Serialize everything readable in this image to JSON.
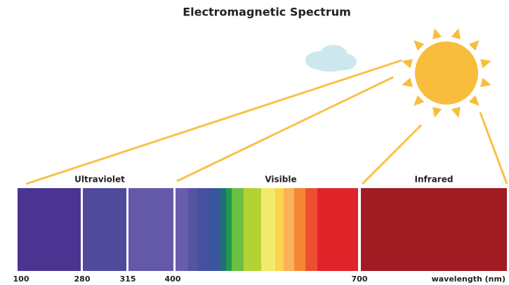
{
  "title": "Electromagnetic Spectrum",
  "regions": [
    "Ultraviolet",
    "Visible",
    "Infrared"
  ],
  "wavelength_labels": [
    "100",
    "280",
    "315",
    "400",
    "700"
  ],
  "axis_label": "wavelength (nm)"
}
